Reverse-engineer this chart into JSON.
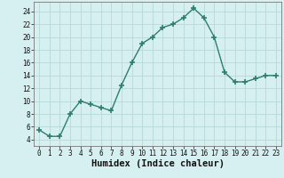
{
  "x": [
    0,
    1,
    2,
    3,
    4,
    5,
    6,
    7,
    8,
    9,
    10,
    11,
    12,
    13,
    14,
    15,
    16,
    17,
    18,
    19,
    20,
    21,
    22,
    23
  ],
  "y": [
    5.5,
    4.5,
    4.5,
    8,
    10,
    9.5,
    9,
    8.5,
    12.5,
    16,
    19,
    20,
    21.5,
    22,
    23,
    24.5,
    23,
    20,
    14.5,
    13,
    13,
    13.5,
    14,
    14
  ],
  "line_color": "#2e7d6e",
  "marker_color": "#2e7d6e",
  "bg_color": "#d6eff0",
  "grid_color": "#b8d8d8",
  "xlabel": "Humidex (Indice chaleur)",
  "xlim": [
    -0.5,
    23.5
  ],
  "ylim": [
    3,
    25.5
  ],
  "yticks": [
    4,
    6,
    8,
    10,
    12,
    14,
    16,
    18,
    20,
    22,
    24
  ],
  "xticks": [
    0,
    1,
    2,
    3,
    4,
    5,
    6,
    7,
    8,
    9,
    10,
    11,
    12,
    13,
    14,
    15,
    16,
    17,
    18,
    19,
    20,
    21,
    22,
    23
  ],
  "xlabel_fontsize": 7.5,
  "tick_fontsize": 6,
  "marker_size": 4,
  "line_width": 1.0
}
